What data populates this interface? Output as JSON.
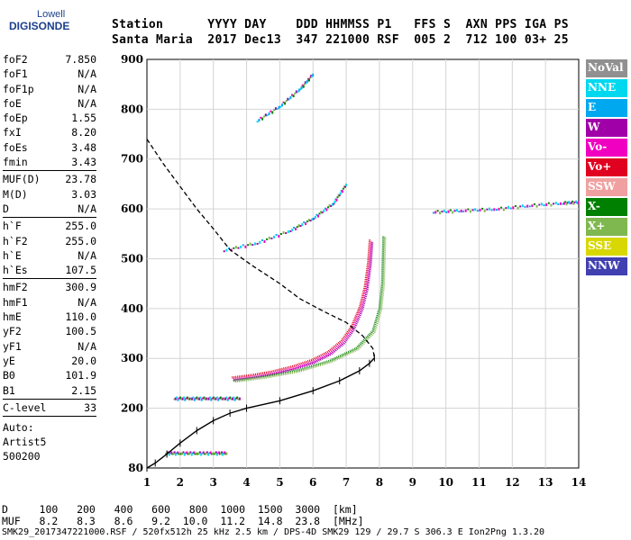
{
  "logo": {
    "line1": "Lowell",
    "line2": "DIGISONDE"
  },
  "header": {
    "line1": "Station      YYYY DAY    DDD HHMMSS P1   FFS S  AXN PPS IGA PS",
    "line2": "Santa Maria  2017 Dec13  347 221000 RSF  005 2  712 100 03+ 25"
  },
  "params": {
    "group1": [
      {
        "label": "foF2",
        "value": "7.850"
      },
      {
        "label": "foF1",
        "value": "N/A"
      },
      {
        "label": "foF1p",
        "value": "N/A"
      },
      {
        "label": "foE",
        "value": "N/A"
      },
      {
        "label": "foEp",
        "value": "1.55"
      },
      {
        "label": "fxI",
        "value": "8.20"
      },
      {
        "label": "foEs",
        "value": "3.48"
      },
      {
        "label": "fmin",
        "value": "3.43"
      }
    ],
    "group2": [
      {
        "label": "MUF(D)",
        "value": "23.78"
      },
      {
        "label": "M(D)",
        "value": "3.03"
      },
      {
        "label": "D",
        "value": "N/A"
      }
    ],
    "group3": [
      {
        "label": "h`F",
        "value": "255.0"
      },
      {
        "label": "h`F2",
        "value": "255.0"
      },
      {
        "label": "h`E",
        "value": "N/A"
      },
      {
        "label": "h`Es",
        "value": "107.5"
      }
    ],
    "group4": [
      {
        "label": "hmF2",
        "value": "300.9"
      },
      {
        "label": "hmF1",
        "value": "N/A"
      },
      {
        "label": "hmE",
        "value": "110.0"
      },
      {
        "label": "yF2",
        "value": "100.5"
      },
      {
        "label": "yF1",
        "value": "N/A"
      },
      {
        "label": "yE",
        "value": "20.0"
      },
      {
        "label": "B0",
        "value": "101.9"
      },
      {
        "label": "B1",
        "value": "2.15"
      }
    ],
    "group5": [
      {
        "label": "C-level",
        "value": "33"
      }
    ],
    "auto": [
      "Auto:",
      "Artist5",
      "500200"
    ]
  },
  "legend": [
    {
      "label": "NoVal",
      "color": "#909090"
    },
    {
      "label": "NNE",
      "color": "#00d8f0"
    },
    {
      "label": "E",
      "color": "#00a8f0"
    },
    {
      "label": "W",
      "color": "#a000a8"
    },
    {
      "label": "Vo-",
      "color": "#f000c0"
    },
    {
      "label": "Vo+",
      "color": "#e00020"
    },
    {
      "label": "SSW",
      "color": "#f0a0a0"
    },
    {
      "label": "X-",
      "color": "#008000"
    },
    {
      "label": "X+",
      "color": "#80b850"
    },
    {
      "label": "SSE",
      "color": "#d8d800"
    },
    {
      "label": "NNW",
      "color": "#4040b0"
    }
  ],
  "chart_data": {
    "type": "scatter",
    "title": "",
    "xlabel": "",
    "ylabel": "",
    "xlim": [
      1,
      14
    ],
    "ylim": [
      80,
      900
    ],
    "x_ticks": [
      "1",
      "2",
      "3",
      "4",
      "5",
      "6",
      "7",
      "8",
      "9",
      "10",
      "11",
      "12",
      "13",
      "14"
    ],
    "y_ticks": [
      "80",
      "200",
      "300",
      "400",
      "500",
      "600",
      "700",
      "800",
      "900"
    ],
    "grid": true,
    "series": [
      {
        "name": "Vo-",
        "kind": "o-trace",
        "points": [
          [
            3.6,
            258
          ],
          [
            4.2,
            263
          ],
          [
            4.8,
            270
          ],
          [
            5.4,
            280
          ],
          [
            6.0,
            293
          ],
          [
            6.5,
            310
          ],
          [
            6.9,
            332
          ],
          [
            7.2,
            360
          ],
          [
            7.45,
            400
          ],
          [
            7.6,
            440
          ],
          [
            7.7,
            490
          ],
          [
            7.75,
            535
          ]
        ]
      },
      {
        "name": "X-",
        "kind": "x-trace",
        "points": [
          [
            3.6,
            255
          ],
          [
            4.5,
            263
          ],
          [
            5.5,
            275
          ],
          [
            6.5,
            295
          ],
          [
            7.3,
            320
          ],
          [
            7.8,
            355
          ],
          [
            8.0,
            400
          ],
          [
            8.08,
            450
          ],
          [
            8.1,
            500
          ],
          [
            8.12,
            545
          ]
        ]
      },
      {
        "name": "E-layer",
        "kind": "echo",
        "points": [
          [
            1.55,
            108
          ],
          [
            2.0,
            108
          ],
          [
            2.5,
            108
          ],
          [
            3.0,
            108
          ],
          [
            3.4,
            108
          ]
        ]
      },
      {
        "name": "Es-2hop",
        "kind": "echo",
        "points": [
          [
            1.8,
            218
          ],
          [
            2.3,
            218
          ],
          [
            2.8,
            218
          ],
          [
            3.3,
            218
          ],
          [
            3.8,
            218
          ]
        ]
      },
      {
        "name": "F2-2hop",
        "kind": "echo",
        "points": [
          [
            3.3,
            515
          ],
          [
            4.3,
            530
          ],
          [
            5.3,
            555
          ],
          [
            6.0,
            580
          ],
          [
            6.6,
            610
          ],
          [
            7.0,
            650
          ]
        ]
      },
      {
        "name": "F2-3hop",
        "kind": "echo",
        "points": [
          [
            4.3,
            775
          ],
          [
            5.0,
            805
          ],
          [
            5.6,
            840
          ],
          [
            6.0,
            870
          ]
        ]
      },
      {
        "name": "Spread",
        "kind": "echo",
        "points": [
          [
            9.6,
            592
          ],
          [
            10.5,
            595
          ],
          [
            11.5,
            598
          ],
          [
            12.5,
            605
          ],
          [
            13.5,
            610
          ],
          [
            14,
            612
          ]
        ]
      }
    ],
    "profile": [
      [
        1,
        80
      ],
      [
        1.25,
        90
      ],
      [
        1.6,
        108
      ],
      [
        2.0,
        130
      ],
      [
        2.5,
        155
      ],
      [
        3.0,
        175
      ],
      [
        3.5,
        190
      ],
      [
        4.0,
        200
      ],
      [
        5.0,
        215
      ],
      [
        6.0,
        235
      ],
      [
        6.8,
        255
      ],
      [
        7.4,
        275
      ],
      [
        7.7,
        290
      ],
      [
        7.85,
        301
      ]
    ],
    "profile_dashed": [
      [
        1,
        740
      ],
      [
        1.5,
        690
      ],
      [
        2.0,
        645
      ],
      [
        2.5,
        600
      ],
      [
        3.0,
        560
      ],
      [
        3.5,
        518
      ],
      [
        4.2,
        485
      ],
      [
        5.0,
        450
      ],
      [
        5.6,
        420
      ],
      [
        6.3,
        395
      ],
      [
        7.0,
        372
      ],
      [
        7.5,
        345
      ],
      [
        7.8,
        320
      ],
      [
        7.85,
        301
      ]
    ]
  },
  "footer": {
    "line1": "D     100   200   400   600   800  1000  1500  3000  [km]",
    "line2": "MUF   8.2   8.3   8.6   9.2  10.0  11.2  14.8  23.8  [MHz]",
    "line3": "SMK29_2017347221000.RSF / 520fx512h 25 kHz 2.5 km / DPS-4D SMK29 129 / 29.7 S 306.3 E Ion2Png 1.3.20"
  }
}
